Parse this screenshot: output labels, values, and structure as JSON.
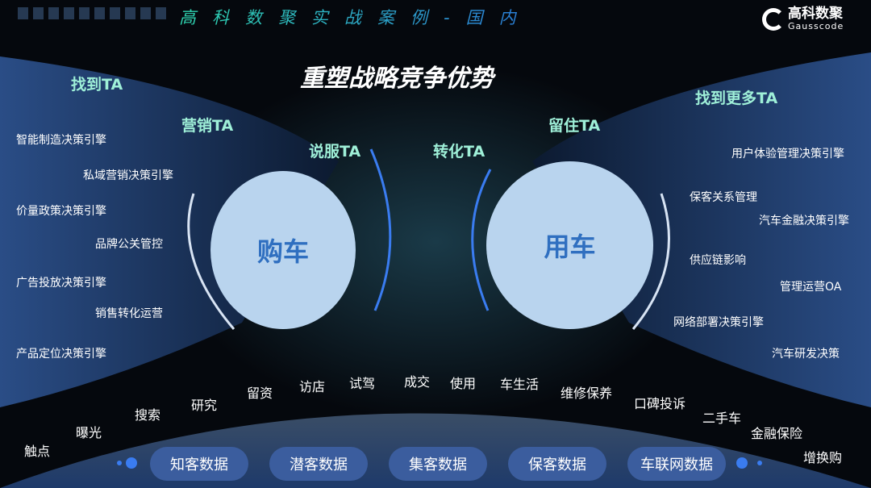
{
  "header": {
    "title": "高科数聚实战案例-国内",
    "logo_cn": "高科数聚",
    "logo_en": "Gausscode"
  },
  "main_title": "重塑战略竞争优势",
  "ta_labels": {
    "find": "找到TA",
    "market": "营销TA",
    "persuade": "说服TA",
    "convert": "转化TA",
    "retain": "留住TA",
    "find_more": "找到更多TA"
  },
  "circles": {
    "buy": "购车",
    "use": "用车"
  },
  "left_engines": [
    "智能制造决策引擎",
    "私域营销决策引擎",
    "价量政策决策引擎",
    "品牌公关管控",
    "广告投放决策引擎",
    "销售转化运营",
    "产品定位决策引擎"
  ],
  "right_engines": [
    "用户体验管理决策引擎",
    "保客关系管理",
    "汽车金融决策引擎",
    "供应链影响",
    "管理运营OA",
    "网络部署决策引擎",
    "汽车研发决策"
  ],
  "journey": [
    "触点",
    "曝光",
    "搜索",
    "研究",
    "留资",
    "访店",
    "试驾",
    "成交",
    "使用",
    "车生活",
    "维修保养",
    "口碑投诉",
    "二手车",
    "金融保险",
    "增换购"
  ],
  "data_pills": [
    "知客数据",
    "潜客数据",
    "集客数据",
    "保客数据",
    "车联网数据"
  ],
  "colors": {
    "accent": "#3a7cf0",
    "pill": "#3b5d9e",
    "circle": "#b9d4ee",
    "ta": "#9ff0d8"
  }
}
